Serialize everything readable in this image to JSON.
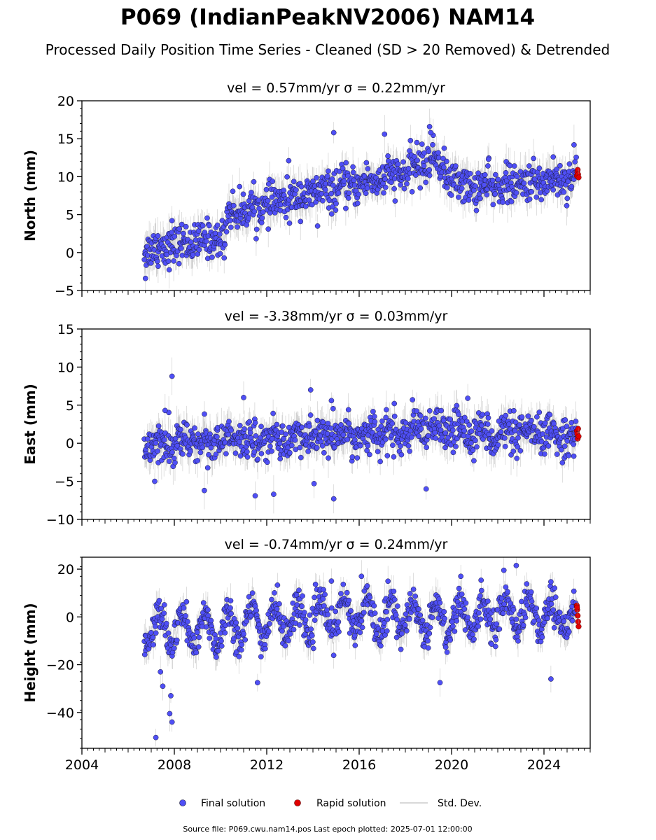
{
  "figure": {
    "title": "P069 (IndianPeakNV2006) NAM14",
    "subtitle": "Processed Daily Position Time Series - Cleaned (SD > 20 Removed) & Detrended",
    "source_note": "Source file: P069.cwu.nam14.pos  Last epoch plotted: 2025-07-01 12:00:00"
  },
  "legend": {
    "final": "Final solution",
    "rapid": "Rapid solution",
    "std": "Std. Dev."
  },
  "colors": {
    "final_fill": "#4f4ff5",
    "final_edge": "#1a1a3a",
    "rapid_fill": "#e00000",
    "std_line": "#9a9a9a"
  },
  "chart_data": [
    {
      "type": "scatter",
      "component": "North",
      "panel_title": "vel = 0.57mm/yr   σ = 0.22mm/yr",
      "ylabel": "North (mm)",
      "xlim": [
        2004.0,
        2026.0
      ],
      "ylim": [
        -5,
        20
      ],
      "yticks": [
        -5,
        0,
        5,
        10,
        15,
        20
      ],
      "x_range": [
        2006.7,
        2025.4
      ],
      "trend_knots": [
        [
          2006.7,
          0.5
        ],
        [
          2008.0,
          1.0
        ],
        [
          2010.2,
          2.0
        ],
        [
          2010.3,
          5.2
        ],
        [
          2012.0,
          6.2
        ],
        [
          2014.0,
          7.8
        ],
        [
          2016.0,
          9.0
        ],
        [
          2018.0,
          10.5
        ],
        [
          2019.3,
          12.5
        ],
        [
          2020.0,
          9.5
        ],
        [
          2021.0,
          8.5
        ],
        [
          2023.0,
          9.0
        ],
        [
          2025.4,
          10.0
        ]
      ],
      "scatter_amplitude": 2.2,
      "seasonal_amplitude": 0.3,
      "std_dev_typical": 1.8,
      "outliers": [
        [
          2006.75,
          -3.4
        ],
        [
          2007.9,
          4.2
        ],
        [
          2012.95,
          12.1
        ],
        [
          2014.9,
          15.8
        ],
        [
          2017.1,
          15.6
        ],
        [
          2019.05,
          16.6
        ],
        [
          2019.1,
          15.8
        ],
        [
          2018.5,
          14.5
        ],
        [
          2021.6,
          12.3
        ],
        [
          2024.4,
          12.6
        ],
        [
          2025.3,
          14.2
        ],
        [
          2014.2,
          3.5
        ],
        [
          2007.3,
          -1.8
        ]
      ],
      "rapid_points": [
        [
          2025.42,
          10.1
        ],
        [
          2025.44,
          10.6
        ],
        [
          2025.46,
          10.9
        ],
        [
          2025.48,
          10.3
        ],
        [
          2025.5,
          9.9
        ]
      ]
    },
    {
      "type": "scatter",
      "component": "East",
      "panel_title": "vel = -3.38mm/yr   σ = 0.03mm/yr",
      "ylabel": "East (mm)",
      "xlim": [
        2004.0,
        2026.0
      ],
      "ylim": [
        -10,
        15
      ],
      "yticks": [
        -10,
        -5,
        0,
        5,
        10,
        15
      ],
      "x_range": [
        2006.7,
        2025.4
      ],
      "trend_knots": [
        [
          2006.7,
          0.0
        ],
        [
          2010.0,
          0.3
        ],
        [
          2014.0,
          0.8
        ],
        [
          2018.0,
          1.3
        ],
        [
          2020.0,
          1.8
        ],
        [
          2022.0,
          1.2
        ],
        [
          2025.4,
          1.0
        ]
      ],
      "scatter_amplitude": 2.3,
      "seasonal_amplitude": 0.6,
      "std_dev_typical": 1.8,
      "outliers": [
        [
          2007.9,
          8.8
        ],
        [
          2011.0,
          6.0
        ],
        [
          2013.9,
          7.0
        ],
        [
          2014.8,
          5.6
        ],
        [
          2020.7,
          5.9
        ],
        [
          2007.15,
          -5.0
        ],
        [
          2009.3,
          -6.2
        ],
        [
          2011.5,
          -6.9
        ],
        [
          2012.3,
          -6.7
        ],
        [
          2014.05,
          -5.3
        ],
        [
          2014.9,
          -7.3
        ],
        [
          2018.9,
          -6.0
        ],
        [
          2007.6,
          4.3
        ]
      ],
      "rapid_points": [
        [
          2025.42,
          1.6
        ],
        [
          2025.44,
          1.2
        ],
        [
          2025.46,
          0.6
        ],
        [
          2025.48,
          1.9
        ],
        [
          2025.5,
          0.9
        ]
      ]
    },
    {
      "type": "scatter",
      "component": "Height",
      "panel_title": "vel = -0.74mm/yr   σ = 0.24mm/yr",
      "ylabel": "Height (mm)",
      "xlim": [
        2004.0,
        2026.0
      ],
      "ylim": [
        -55,
        25
      ],
      "yticks": [
        -40,
        -20,
        0,
        20
      ],
      "x_range": [
        2006.7,
        2025.4
      ],
      "trend_knots": [
        [
          2006.7,
          -5.0
        ],
        [
          2009.0,
          -6.0
        ],
        [
          2012.0,
          -2.0
        ],
        [
          2016.0,
          1.0
        ],
        [
          2020.0,
          -1.0
        ],
        [
          2022.5,
          2.0
        ],
        [
          2025.4,
          0.0
        ]
      ],
      "scatter_amplitude": 6.5,
      "seasonal_amplitude": 7.0,
      "std_dev_typical": 5.0,
      "outliers": [
        [
          2007.2,
          -50.5
        ],
        [
          2007.8,
          -40.5
        ],
        [
          2007.9,
          -44.0
        ],
        [
          2007.85,
          -33.0
        ],
        [
          2007.5,
          -29.0
        ],
        [
          2007.4,
          -23.0
        ],
        [
          2011.6,
          -27.5
        ],
        [
          2019.5,
          -27.5
        ],
        [
          2024.3,
          -26.0
        ],
        [
          2022.8,
          21.5
        ],
        [
          2016.1,
          17.0
        ],
        [
          2014.8,
          15.0
        ],
        [
          2020.4,
          17.0
        ]
      ],
      "rapid_points": [
        [
          2025.42,
          4.8
        ],
        [
          2025.44,
          3.0
        ],
        [
          2025.46,
          0.5
        ],
        [
          2025.48,
          -2.0
        ],
        [
          2025.5,
          -4.0
        ],
        [
          2025.43,
          4.0
        ]
      ]
    }
  ],
  "x_axis": {
    "ticks": [
      2004,
      2008,
      2012,
      2016,
      2020,
      2024
    ],
    "minor_step": 0.25,
    "mid_step": 1
  }
}
